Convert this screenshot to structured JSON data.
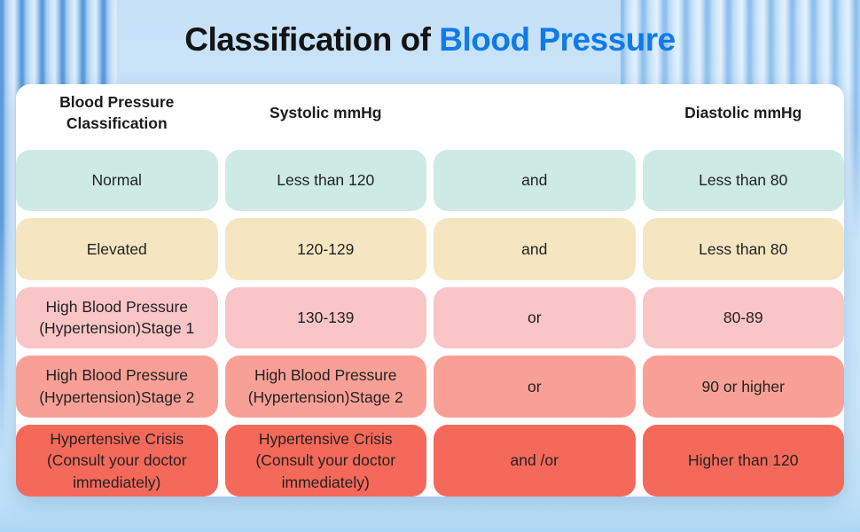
{
  "title": {
    "prefix": "Classification of",
    "highlight": "Blood Pressure"
  },
  "table": {
    "headers": [
      "Blood Pressure Classification",
      "Systolic mmHg",
      "",
      "Diastolic mmHg"
    ],
    "rows": [
      {
        "classification": "Normal",
        "systolic": "Less than 120",
        "connector": "and",
        "diastolic": "Less than 80",
        "color": "#cdeae4"
      },
      {
        "classification": "Elevated",
        "systolic": "120-129",
        "connector": "and",
        "diastolic": "Less than 80",
        "color": "#f5e5c1"
      },
      {
        "classification": "High Blood Pressure (Hypertension)Stage 1",
        "systolic": "130-139",
        "connector": "or",
        "diastolic": "80-89",
        "color": "#f9c5c7"
      },
      {
        "classification": "High Blood Pressure (Hypertension)Stage 2",
        "systolic": "High Blood Pressure (Hypertension)Stage 2",
        "connector": "or",
        "diastolic": "90 or higher",
        "color": "#f9a096"
      },
      {
        "classification": "Hypertensive Crisis (Consult your doctor immediately)",
        "systolic": "Hypertensive Crisis (Consult your doctor immediately)",
        "connector": "and /or",
        "diastolic": "Higher than 120",
        "color": "#f5695a"
      }
    ]
  },
  "colors": {
    "title_highlight": "#107ae8",
    "background_blue": "#cde7fa",
    "panel_white": "#ffffff",
    "row_normal": "#cdeae4",
    "row_elevated": "#f5e5c1",
    "row_stage1": "#f9c5c7",
    "row_stage2": "#f9a096",
    "row_crisis": "#f5695a"
  },
  "chart_data": {
    "type": "table",
    "title": "Classification of Blood Pressure",
    "columns": [
      "Blood Pressure Classification",
      "Systolic mmHg",
      "",
      "Diastolic mmHg"
    ],
    "rows": [
      [
        "Normal",
        "Less than 120",
        "and",
        "Less than 80"
      ],
      [
        "Elevated",
        "120-129",
        "and",
        "Less than 80"
      ],
      [
        "High Blood Pressure (Hypertension)Stage 1",
        "130-139",
        "or",
        "80-89"
      ],
      [
        "High Blood Pressure (Hypertension)Stage 2",
        "High Blood Pressure (Hypertension)Stage 2",
        "or",
        "90 or higher"
      ],
      [
        "Hypertensive Crisis (Consult your doctor immediately)",
        "Hypertensive Crisis (Consult your doctor immediately)",
        "and /or",
        "Higher than 120"
      ]
    ],
    "row_colors": [
      "#cdeae4",
      "#f5e5c1",
      "#f9c5c7",
      "#f9a096",
      "#f5695a"
    ],
    "legend_position": "none",
    "grid": false
  }
}
